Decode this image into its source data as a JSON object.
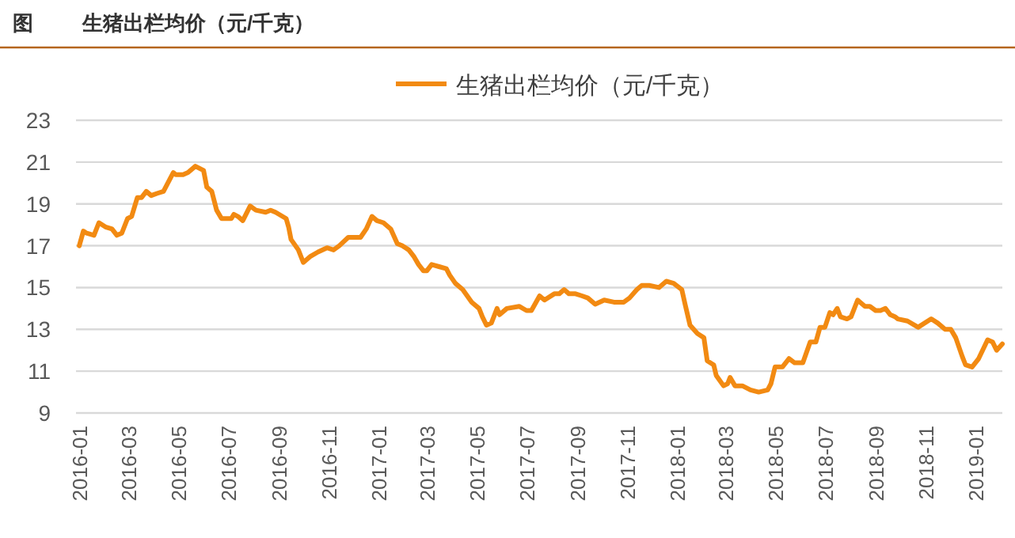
{
  "chart_data": {
    "type": "line",
    "title": "图",
    "subtitle": "生猪出栏均价（元/千克）",
    "legend": "top",
    "grid": "y",
    "marker": "none",
    "line_style": "solid",
    "xlim": [
      "2015-12-28",
      "2019-02-03"
    ],
    "xticks": [
      "2016-01",
      "2016-03",
      "2016-05",
      "2016-07",
      "2016-09",
      "2016-11",
      "2017-01",
      "2017-03",
      "2017-05",
      "2017-07",
      "2017-09",
      "2017-11",
      "2018-01",
      "2018-03",
      "2018-05",
      "2018-07",
      "2018-09",
      "2018-11",
      "2019-01"
    ],
    "ylim": [
      9,
      23
    ],
    "yticks": [
      9,
      11,
      13,
      15,
      17,
      19,
      21,
      23
    ],
    "series": [
      {
        "name": "生猪出栏均价（元/千克）",
        "color": "#f28a12",
        "x": [
          "2016-01-01",
          "2016-01-06",
          "2016-01-10",
          "2016-01-19",
          "2016-01-25",
          "2016-02-02",
          "2016-02-10",
          "2016-02-16",
          "2016-02-22",
          "2016-02-29",
          "2016-03-05",
          "2016-03-12",
          "2016-03-17",
          "2016-03-23",
          "2016-03-29",
          "2016-04-05",
          "2016-04-13",
          "2016-04-25",
          "2016-04-28",
          "2016-05-07",
          "2016-05-13",
          "2016-05-22",
          "2016-06-01",
          "2016-06-05",
          "2016-06-11",
          "2016-06-17",
          "2016-06-23",
          "2016-07-05",
          "2016-07-08",
          "2016-07-13",
          "2016-07-19",
          "2016-07-28",
          "2016-08-04",
          "2016-08-16",
          "2016-08-22",
          "2016-08-28",
          "2016-09-10",
          "2016-09-13",
          "2016-09-16",
          "2016-09-25",
          "2016-10-01",
          "2016-10-10",
          "2016-10-19",
          "2016-10-30",
          "2016-11-07",
          "2016-11-14",
          "2016-11-25",
          "2016-12-01",
          "2016-12-10",
          "2016-12-17",
          "2016-12-24",
          "2016-12-30",
          "2017-01-07",
          "2017-01-16",
          "2017-01-24",
          "2017-01-30",
          "2017-02-07",
          "2017-02-13",
          "2017-02-19",
          "2017-02-25",
          "2017-03-01",
          "2017-03-07",
          "2017-03-16",
          "2017-03-25",
          "2017-03-29",
          "2017-04-05",
          "2017-04-14",
          "2017-04-25",
          "2017-05-04",
          "2017-05-08",
          "2017-05-13",
          "2017-05-19",
          "2017-05-26",
          "2017-05-29",
          "2017-06-07",
          "2017-06-22",
          "2017-07-01",
          "2017-07-07",
          "2017-07-17",
          "2017-07-23",
          "2017-08-04",
          "2017-08-10",
          "2017-08-16",
          "2017-08-22",
          "2017-08-30",
          "2017-09-07",
          "2017-09-14",
          "2017-09-23",
          "2017-10-04",
          "2017-10-16",
          "2017-10-28",
          "2017-11-04",
          "2017-11-13",
          "2017-11-19",
          "2017-11-28",
          "2017-12-10",
          "2017-12-19",
          "2017-12-28",
          "2018-01-07",
          "2018-01-11",
          "2018-01-17",
          "2018-01-26",
          "2018-02-03",
          "2018-02-07",
          "2018-02-15",
          "2018-02-18",
          "2018-02-27",
          "2018-03-04",
          "2018-03-07",
          "2018-03-13",
          "2018-03-22",
          "2018-04-01",
          "2018-04-11",
          "2018-04-22",
          "2018-04-26",
          "2018-05-01",
          "2018-05-10",
          "2018-05-18",
          "2018-05-25",
          "2018-06-04",
          "2018-06-13",
          "2018-06-20",
          "2018-06-25",
          "2018-07-01",
          "2018-07-07",
          "2018-07-11",
          "2018-07-16",
          "2018-07-20",
          "2018-07-28",
          "2018-08-02",
          "2018-08-10",
          "2018-08-13",
          "2018-08-19",
          "2018-08-25",
          "2018-09-01",
          "2018-09-07",
          "2018-09-13",
          "2018-09-19",
          "2018-09-25",
          "2018-09-28",
          "2018-10-10",
          "2018-10-23",
          "2018-11-08",
          "2018-11-16",
          "2018-11-25",
          "2018-12-02",
          "2018-12-08",
          "2018-12-16",
          "2018-12-20",
          "2018-12-28",
          "2019-01-05",
          "2019-01-16",
          "2019-01-22",
          "2019-01-27",
          "2019-02-03"
        ],
        "values": [
          17.0,
          17.7,
          17.6,
          17.5,
          18.1,
          17.9,
          17.8,
          17.5,
          17.6,
          18.3,
          18.4,
          19.3,
          19.3,
          19.6,
          19.4,
          19.5,
          19.6,
          20.5,
          20.4,
          20.4,
          20.5,
          20.8,
          20.6,
          19.8,
          19.6,
          18.7,
          18.3,
          18.3,
          18.5,
          18.4,
          18.2,
          18.9,
          18.7,
          18.6,
          18.7,
          18.6,
          18.3,
          17.9,
          17.3,
          16.8,
          16.2,
          16.5,
          16.7,
          16.9,
          16.8,
          17.0,
          17.4,
          17.4,
          17.4,
          17.8,
          18.4,
          18.2,
          18.1,
          17.8,
          17.1,
          17.0,
          16.8,
          16.5,
          16.1,
          15.8,
          15.8,
          16.1,
          16.0,
          15.9,
          15.6,
          15.2,
          14.9,
          14.3,
          14.0,
          13.6,
          13.2,
          13.3,
          14.0,
          13.7,
          14.0,
          14.1,
          13.9,
          13.9,
          14.6,
          14.4,
          14.7,
          14.7,
          14.9,
          14.7,
          14.7,
          14.6,
          14.5,
          14.2,
          14.4,
          14.3,
          14.3,
          14.5,
          14.9,
          15.1,
          15.1,
          15.0,
          15.3,
          15.2,
          14.9,
          14.2,
          13.2,
          12.8,
          12.6,
          11.5,
          11.3,
          10.8,
          10.3,
          10.4,
          10.7,
          10.3,
          10.3,
          10.1,
          10.0,
          10.1,
          10.4,
          11.2,
          11.2,
          11.6,
          11.4,
          11.4,
          12.4,
          12.4,
          13.1,
          13.1,
          13.8,
          13.7,
          14.0,
          13.6,
          13.5,
          13.6,
          14.4,
          14.3,
          14.1,
          14.1,
          13.9,
          13.9,
          14.0,
          13.7,
          13.6,
          13.5,
          13.4,
          13.1,
          13.5,
          13.3,
          13.0,
          13.0,
          12.6,
          11.7,
          11.3,
          11.2,
          11.6,
          12.5,
          12.4,
          12.0,
          12.3
        ]
      }
    ]
  }
}
